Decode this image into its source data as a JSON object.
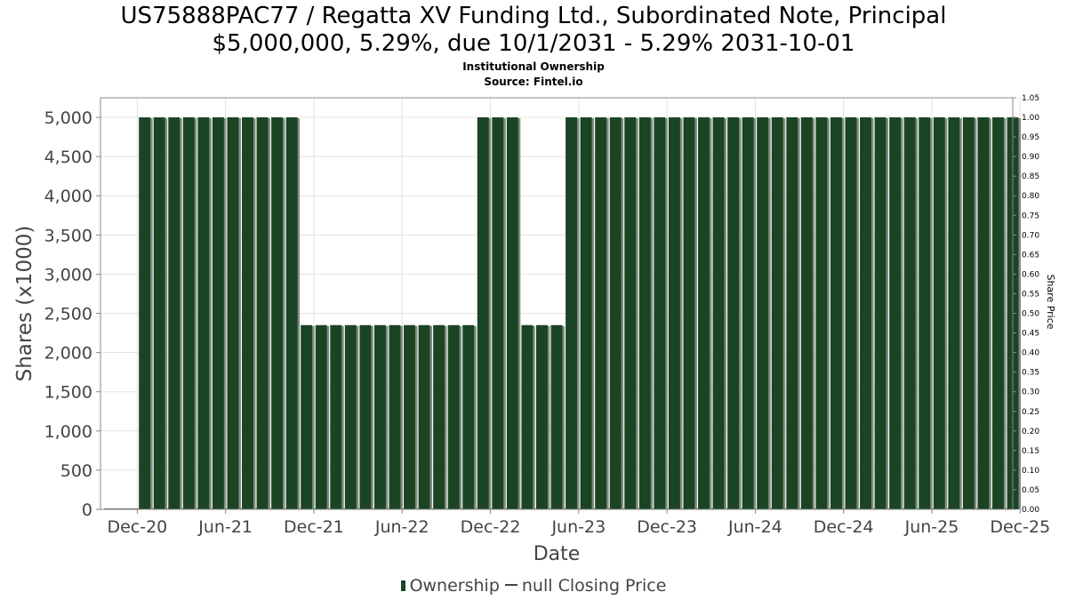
{
  "header": {
    "title_line1": "US75888PAC77 / Regatta XV Funding Ltd., Subordinated Note, Principal",
    "title_line2": "$5,000,000, 5.29%, due 10/1/2031 - 5.29% 2031-10-01",
    "subtitle1": "Institutional Ownership",
    "subtitle2": "Source: Fintel.io"
  },
  "legend": {
    "ownership_label": "Ownership",
    "price_label": "null Closing Price"
  },
  "colors": {
    "bar_fill": "#1b4424",
    "bar_shadow": "#7f8a80",
    "grid": "#e3e3e3",
    "axis_text": "#444444"
  },
  "chart_data": {
    "type": "bar",
    "title": "US75888PAC77 / Regatta XV Funding Ltd., Subordinated Note, Principal $5,000,000, 5.29%, due 10/1/2031 - 5.29% 2031-10-01",
    "xlabel": "Date",
    "ylabel": "Shares (x1000)",
    "y2label": "Share Price",
    "ylim": [
      0,
      5250
    ],
    "y2lim": [
      0,
      1.05
    ],
    "yticks": [
      0,
      500,
      1000,
      1500,
      2000,
      2500,
      3000,
      3500,
      4000,
      4500,
      5000
    ],
    "ytick_labels": [
      "0",
      "500",
      "1,000",
      "1,500",
      "2,000",
      "2,500",
      "3,000",
      "3,500",
      "4,000",
      "4,500",
      "5,000"
    ],
    "y2ticks": [
      "0.00",
      "0.05",
      "0.10",
      "0.15",
      "0.20",
      "0.25",
      "0.30",
      "0.35",
      "0.40",
      "0.45",
      "0.50",
      "0.55",
      "0.60",
      "0.65",
      "0.70",
      "0.75",
      "0.80",
      "0.85",
      "0.90",
      "0.95",
      "1.00",
      "1.05"
    ],
    "xticks": [
      "Dec-20",
      "Jun-21",
      "Dec-21",
      "Jun-22",
      "Dec-22",
      "Jun-23",
      "Dec-23",
      "Jun-24",
      "Dec-24",
      "Jun-25",
      "Dec-25"
    ],
    "xlim_months": [
      -2.5,
      59.5
    ],
    "grid": true,
    "legend_position": "bottom",
    "series": [
      {
        "name": "Ownership",
        "months_from_dec20": [
          0.5,
          1.5,
          2.5,
          3.5,
          4.5,
          5.5,
          6.5,
          7.5,
          8.5,
          9.5,
          10.5,
          11.5,
          12.5,
          13.5,
          14.5,
          15.5,
          16.5,
          17.5,
          18.5,
          19.5,
          20.5,
          21.5,
          22.5,
          23.5,
          24.5,
          25.5,
          26.5,
          27.5,
          28.5,
          29.5,
          30.5,
          31.5,
          32.5,
          33.5,
          34.5,
          35.5,
          36.5,
          37.5,
          38.5,
          39.5,
          40.5,
          41.5,
          42.5,
          43.5,
          44.5,
          45.5,
          46.5,
          47.5,
          48.5,
          49.5,
          50.5,
          51.5,
          52.5,
          53.5,
          54.5,
          55.5,
          56.5,
          57.5,
          58.5,
          59.5
        ],
        "values": [
          5000,
          5000,
          5000,
          5000,
          5000,
          5000,
          5000,
          5000,
          5000,
          5000,
          5000,
          2350,
          2350,
          2350,
          2350,
          2350,
          2350,
          2350,
          2350,
          2350,
          2350,
          2350,
          2350,
          5000,
          5000,
          5000,
          2350,
          2350,
          2350,
          5000,
          5000,
          5000,
          5000,
          5000,
          5000,
          5000,
          5000,
          5000,
          5000,
          5000,
          5000,
          5000,
          5000,
          5000,
          5000,
          5000,
          5000,
          5000,
          5000,
          5000,
          5000,
          5000,
          5000,
          5000,
          5000,
          5000,
          5000,
          5000,
          5000,
          5000
        ]
      }
    ]
  }
}
